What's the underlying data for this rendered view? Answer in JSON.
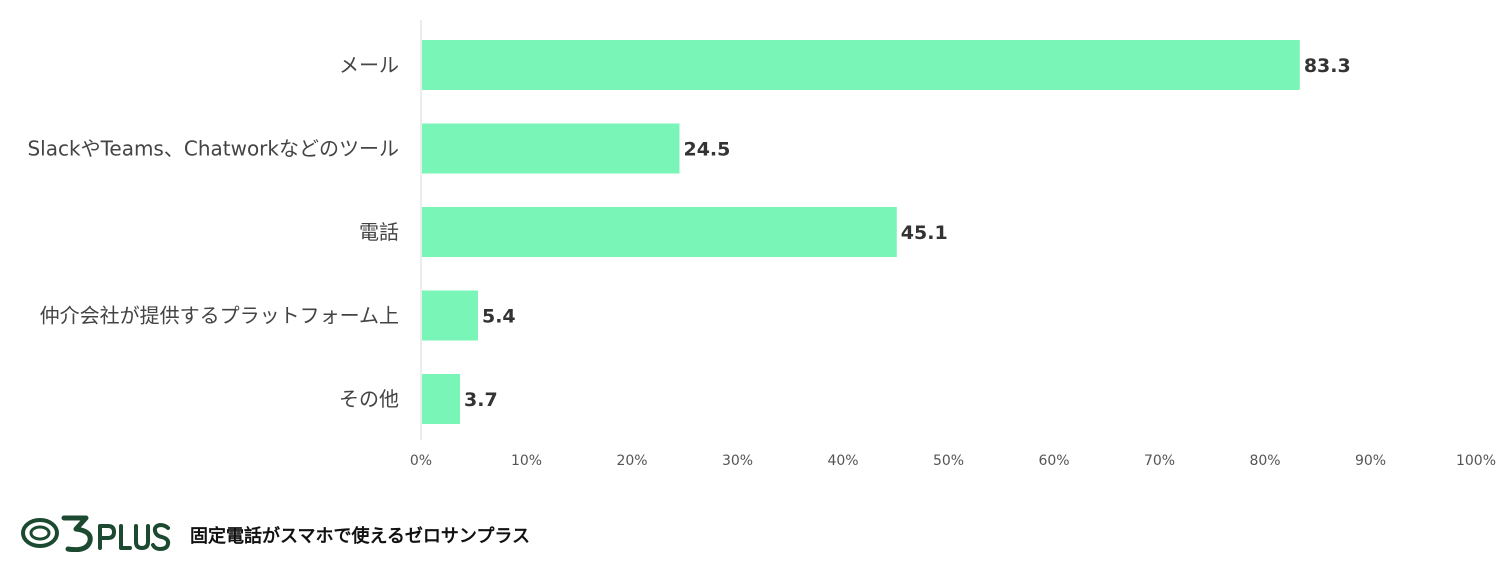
{
  "chart_data": {
    "type": "bar",
    "orientation": "horizontal",
    "categories": [
      "メール",
      "SlackやTeams、Chatworkなどのツール",
      "電話",
      "仲介会社が提供するプラットフォーム上",
      "その他"
    ],
    "values": [
      83.3,
      24.5,
      45.1,
      5.4,
      3.7
    ],
    "value_labels": [
      "83.3",
      "24.5",
      "45.1",
      "5.4",
      "3.7"
    ],
    "xlim": [
      0,
      100
    ],
    "x_ticks": [
      "0%",
      "10%",
      "20%",
      "30%",
      "40%",
      "50%",
      "60%",
      "70%",
      "80%",
      "90%",
      "100%"
    ],
    "bar_color": "#7af5b8",
    "grid": false,
    "legend": "none"
  },
  "brand": {
    "logo_text": "03PLUS",
    "tagline": "固定電話がスマホで使えるゼロサンプラス",
    "logo_color": "#1c4a30"
  }
}
